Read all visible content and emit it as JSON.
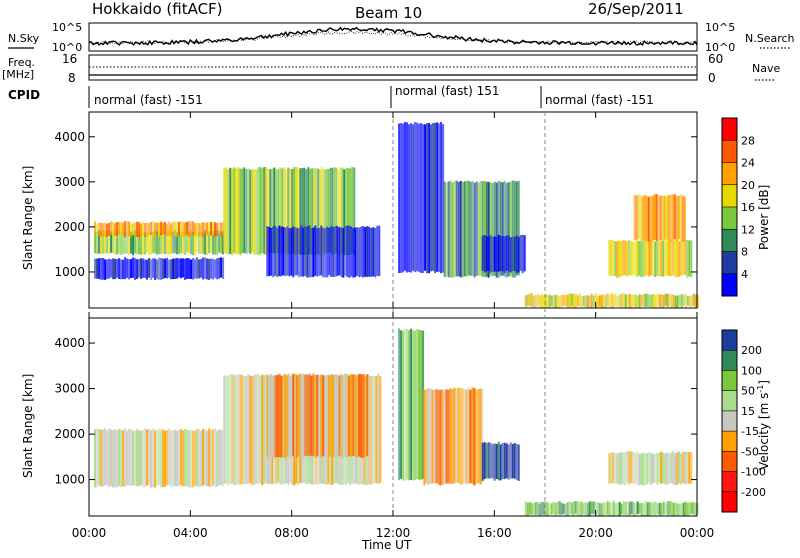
{
  "header": {
    "station": "Hokkaido (fitACF)",
    "beam": "Beam 10",
    "date": "26/Sep/2011"
  },
  "nsky_panel": {
    "left_label": "N.Sky",
    "left_ticks": [
      "10^5",
      "10^0"
    ],
    "right_ticks": [
      "10^5",
      "10^0"
    ],
    "right_label": "N.Search"
  },
  "freq_panel": {
    "left_label_line1": "Freq.",
    "left_label_line2": "[MHz]",
    "left_ticks": [
      "16",
      "8"
    ],
    "right_ticks": [
      "60",
      "0"
    ],
    "right_label": "Nave"
  },
  "cpid": {
    "label": "CPID",
    "segments": [
      {
        "start_h": 0,
        "end_h": 12,
        "text": "normal (fast) -151"
      },
      {
        "start_h": 12,
        "end_h": 18,
        "text": "normal (fast) 151"
      },
      {
        "start_h": 18,
        "end_h": 24,
        "text": "normal (fast) -151"
      }
    ]
  },
  "chart_data": [
    {
      "type": "heatmap",
      "name": "power",
      "ylabel": "Slant Range [km]",
      "y_ticks": [
        "1000",
        "2000",
        "3000",
        "4000"
      ],
      "ylim": [
        200,
        4550
      ],
      "colorbar_label": "Power [dB]",
      "colorbar_ticks": [
        "28",
        "24",
        "20",
        "16",
        "12",
        "8",
        "4"
      ],
      "colorbar_colors": [
        "#ff0000",
        "#ff5a00",
        "#ffa000",
        "#e8d800",
        "#7ac83c",
        "#2e8b57",
        "#1f3ca0",
        "#0000ff"
      ],
      "regions": [
        {
          "t0": 0.2,
          "t1": 5.3,
          "r0": 850,
          "r1": 1300,
          "level": 7
        },
        {
          "t0": 0.2,
          "t1": 5.3,
          "r0": 1400,
          "r1": 1900,
          "level": 4
        },
        {
          "t0": 0.2,
          "t1": 5.3,
          "r0": 1800,
          "r1": 2100,
          "level": 2
        },
        {
          "t0": 5.3,
          "t1": 10.5,
          "r0": 1400,
          "r1": 3300,
          "level": 4
        },
        {
          "t0": 7.0,
          "t1": 11.5,
          "r0": 900,
          "r1": 2000,
          "level": 7
        },
        {
          "t0": 12.2,
          "t1": 14.0,
          "r0": 1000,
          "r1": 4300,
          "level": 7
        },
        {
          "t0": 14.0,
          "t1": 17.0,
          "r0": 900,
          "r1": 3000,
          "level": 5
        },
        {
          "t0": 15.5,
          "t1": 17.2,
          "r0": 1000,
          "r1": 1800,
          "level": 7
        },
        {
          "t0": 17.2,
          "t1": 24.0,
          "r0": 220,
          "r1": 500,
          "level": 3
        },
        {
          "t0": 20.5,
          "t1": 23.8,
          "r0": 900,
          "r1": 1700,
          "level": 3
        },
        {
          "t0": 21.5,
          "t1": 23.5,
          "r0": 1700,
          "r1": 2700,
          "level": 2
        }
      ]
    },
    {
      "type": "heatmap",
      "name": "velocity",
      "ylabel": "Slant Range [km]",
      "y_ticks": [
        "1000",
        "2000",
        "3000",
        "4000"
      ],
      "ylim": [
        200,
        4550
      ],
      "colorbar_label_main": "Velocity [m s",
      "colorbar_label_sup": "-1",
      "colorbar_label_end": "]",
      "colorbar_ticks": [
        "200",
        "100",
        "50",
        "15",
        "-15",
        "-50",
        "-100",
        "-200"
      ],
      "colorbar_colors": [
        "#1f3ca0",
        "#2e8b57",
        "#7ac83c",
        "#a8dc8c",
        "#c8c8c0",
        "#ffa000",
        "#ff5a00",
        "#ff1414",
        "#ff0000"
      ],
      "regions": [
        {
          "t0": 0.2,
          "t1": 5.3,
          "r0": 850,
          "r1": 2100,
          "level": 4
        },
        {
          "t0": 5.3,
          "t1": 11.5,
          "r0": 900,
          "r1": 3300,
          "level": 4
        },
        {
          "t0": 7.0,
          "t1": 11.0,
          "r0": 1500,
          "r1": 3300,
          "level": 5
        },
        {
          "t0": 12.2,
          "t1": 13.2,
          "r0": 1000,
          "r1": 4300,
          "level": 2
        },
        {
          "t0": 13.2,
          "t1": 15.5,
          "r0": 900,
          "r1": 3000,
          "level": 5
        },
        {
          "t0": 15.5,
          "t1": 17.0,
          "r0": 1000,
          "r1": 1800,
          "level": 0
        },
        {
          "t0": 17.2,
          "t1": 24.0,
          "r0": 220,
          "r1": 500,
          "level": 2
        },
        {
          "t0": 20.5,
          "t1": 23.8,
          "r0": 900,
          "r1": 1600,
          "level": 4
        }
      ]
    }
  ],
  "x_axis": {
    "label": "Time UT",
    "ticks": [
      "00:00",
      "04:00",
      "08:00",
      "12:00",
      "16:00",
      "20:00",
      "00:00"
    ],
    "range_h": [
      0,
      24
    ]
  }
}
